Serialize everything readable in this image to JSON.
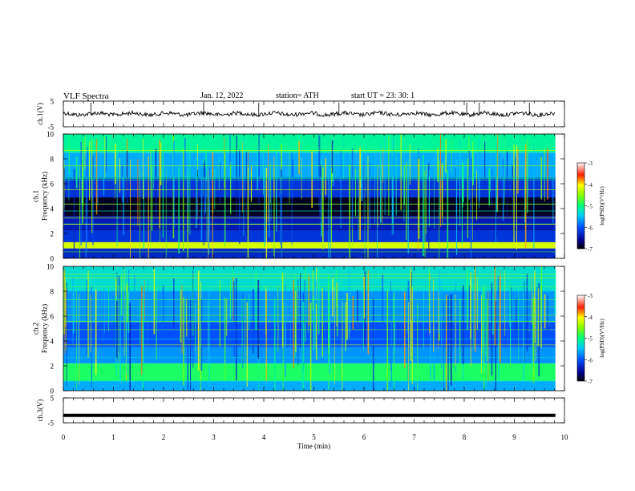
{
  "header": {
    "title": "VLF  Spectra",
    "date": "Jan. 12, 2022",
    "station": "station= ATH",
    "start": "start  UT  =    23: 30: 1"
  },
  "chart_data": [
    {
      "type": "line",
      "ylabel": "ch.1(V)",
      "yticks": [
        "5",
        "-5"
      ],
      "ylim": [
        -5,
        5
      ],
      "xlim": [
        0,
        10
      ],
      "description_value": "noisy baseline near 0 V",
      "series": [
        {
          "color": "#000000",
          "level": 0.0
        }
      ]
    },
    {
      "type": "heatmap",
      "ylabel": "ch.1\nFrequency  (kHz)",
      "ylabel_lines": [
        "ch.1",
        "Frequency  (kHz)"
      ],
      "yticks": [
        "10",
        "8",
        "6",
        "4",
        "2",
        "0"
      ],
      "ylim": [
        0,
        10
      ],
      "xlim": [
        0,
        10
      ],
      "colorbar": {
        "label": "log(PSD)(V²/Hz)",
        "ticks": [
          "-3",
          "-4",
          "-5",
          "-6",
          "-7"
        ],
        "range": [
          -7,
          -3
        ]
      },
      "bands": [
        {
          "from": 0,
          "to": 0.8,
          "level": -6.3
        },
        {
          "from": 0.8,
          "to": 1.3,
          "level": -4.2
        },
        {
          "from": 1.3,
          "to": 2.2,
          "level": -6.2
        },
        {
          "from": 2.2,
          "to": 3.4,
          "level": -6.4
        },
        {
          "from": 3.4,
          "to": 4.9,
          "level": -6.9
        },
        {
          "from": 4.9,
          "to": 6.5,
          "level": -6.2
        },
        {
          "from": 6.5,
          "to": 8.5,
          "level": -5.6
        },
        {
          "from": 8.5,
          "to": 10,
          "level": -5.1
        }
      ]
    },
    {
      "type": "heatmap",
      "ylabel": "ch.2\nFrequency  (kHz)",
      "ylabel_lines": [
        "ch.2",
        "Frequency  (kHz)"
      ],
      "yticks": [
        "10",
        "8",
        "6",
        "4",
        "2",
        "0"
      ],
      "ylim": [
        0,
        10
      ],
      "xlim": [
        0,
        10
      ],
      "colorbar": {
        "label": "log(PSD)(V²/Hz)",
        "ticks": [
          "-3",
          "-4",
          "-5",
          "-6",
          "-7"
        ],
        "range": [
          -7,
          -3
        ]
      },
      "bands": [
        {
          "from": 0,
          "to": 0.8,
          "level": -5.6
        },
        {
          "from": 0.8,
          "to": 2.2,
          "level": -4.9
        },
        {
          "from": 2.2,
          "to": 3.5,
          "level": -5.7
        },
        {
          "from": 3.5,
          "to": 5.5,
          "level": -6.0
        },
        {
          "from": 5.5,
          "to": 8.0,
          "level": -5.7
        },
        {
          "from": 8.0,
          "to": 10,
          "level": -5.3
        }
      ]
    },
    {
      "type": "line",
      "ylabel": "ch.3(V)",
      "yticks": [
        "5",
        "-5"
      ],
      "ylim": [
        -5,
        5
      ],
      "xlim": [
        0,
        10
      ],
      "series": [
        {
          "color": "#000000",
          "level": -2.0
        }
      ]
    }
  ],
  "xaxis": {
    "label": "Time  (min)",
    "ticks": [
      "0",
      "1",
      "2",
      "3",
      "4",
      "5",
      "6",
      "7",
      "8",
      "9",
      "10"
    ]
  }
}
